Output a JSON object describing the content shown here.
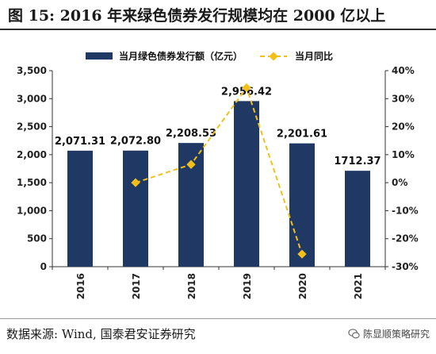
{
  "header": {
    "title": "图 15:  2016 年来绿色债券发行规模均在 2000 亿以上"
  },
  "footer": {
    "source": "数据来源:  Wind,  国泰君安证券研究",
    "watermark": "陈显顺策略研究",
    "watermark_icon": "wechat-icon"
  },
  "chart_data": {
    "type": "bar",
    "categories": [
      "2016",
      "2017",
      "2018",
      "2019",
      "2020",
      "2021"
    ],
    "series": [
      {
        "name": "当月绿色债券发行额（亿元）",
        "type": "bar",
        "axis": "left",
        "color": "#1f3864",
        "values": [
          2071.31,
          2072.8,
          2208.53,
          2956.42,
          2201.61,
          1712.37
        ],
        "labels": [
          "2,071.31",
          "2,072.80",
          "2,208.53",
          "2,956.42",
          "2,201.61",
          "1712.37"
        ]
      },
      {
        "name": "当月同比",
        "type": "line",
        "axis": "right",
        "color": "#f2c01b",
        "values": [
          null,
          0.0,
          6.5,
          33.9,
          -25.5,
          null
        ]
      }
    ],
    "ylim_left": [
      0,
      3500
    ],
    "yticks_left": [
      "0",
      "500",
      "1,000",
      "1,500",
      "2,000",
      "2,500",
      "3,000",
      "3,500"
    ],
    "ylim_right": [
      -30,
      40
    ],
    "yticks_right": [
      "-30%",
      "-20%",
      "-10%",
      "0%",
      "10%",
      "20%",
      "30%",
      "40%"
    ],
    "grid": false,
    "legend_position": "top"
  }
}
